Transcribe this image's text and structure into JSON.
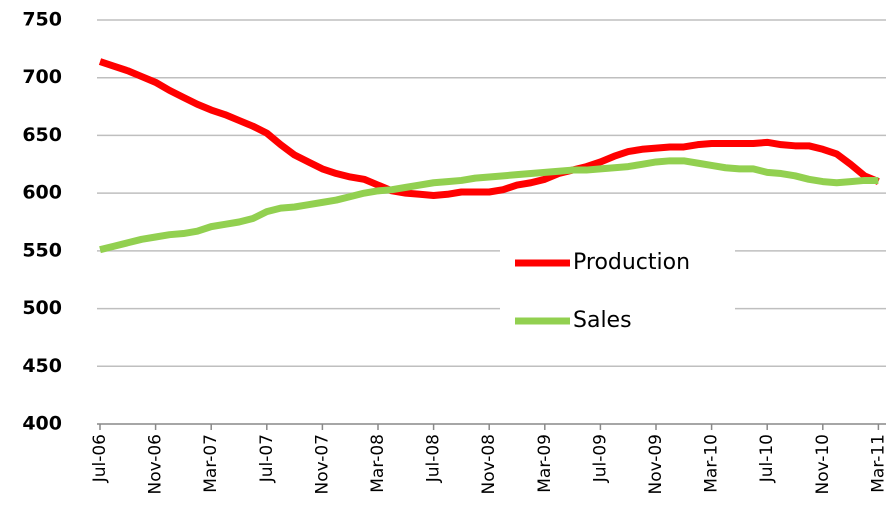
{
  "chart_data": {
    "type": "line",
    "categories": [
      "Jul-06",
      null,
      null,
      null,
      "Nov-06",
      null,
      null,
      null,
      "Mar-07",
      null,
      null,
      null,
      "Jul-07",
      null,
      null,
      null,
      "Nov-07",
      null,
      null,
      null,
      "Mar-08",
      null,
      null,
      null,
      "Jul-08",
      null,
      null,
      null,
      "Nov-08",
      null,
      null,
      null,
      "Mar-09",
      null,
      null,
      null,
      "Jul-09",
      null,
      null,
      null,
      "Nov-09",
      null,
      null,
      null,
      "Mar-10",
      null,
      null,
      null,
      "Jul-10",
      null,
      null,
      null,
      "Nov-10",
      null,
      null,
      null,
      "Mar-11"
    ],
    "series": [
      {
        "name": "Production",
        "color": "#ff0000",
        "values": [
          714,
          710,
          706,
          701,
          696,
          689,
          683,
          677,
          672,
          668,
          663,
          658,
          652,
          642,
          633,
          627,
          621,
          617,
          614,
          612,
          607,
          602,
          600,
          599,
          598,
          599,
          601,
          601,
          601,
          603,
          607,
          609,
          612,
          617,
          620,
          623,
          627,
          632,
          636,
          638,
          639,
          640,
          640,
          642,
          643,
          643,
          643,
          643,
          644,
          642,
          641,
          641,
          638,
          634,
          625,
          615,
          610
        ]
      },
      {
        "name": "Sales",
        "color": "#92d050",
        "values": [
          551,
          554,
          557,
          560,
          562,
          564,
          565,
          567,
          571,
          573,
          575,
          578,
          584,
          587,
          588,
          590,
          592,
          594,
          597,
          600,
          602,
          603,
          605,
          607,
          609,
          610,
          611,
          613,
          614,
          615,
          616,
          617,
          618,
          619,
          620,
          620,
          621,
          622,
          623,
          625,
          627,
          628,
          628,
          626,
          624,
          622,
          621,
          621,
          618,
          617,
          615,
          612,
          610,
          609,
          610,
          611,
          611
        ]
      }
    ],
    "ylim": [
      400,
      750
    ],
    "yticks": [
      400,
      450,
      500,
      550,
      600,
      650,
      700,
      750
    ],
    "grid": true
  }
}
